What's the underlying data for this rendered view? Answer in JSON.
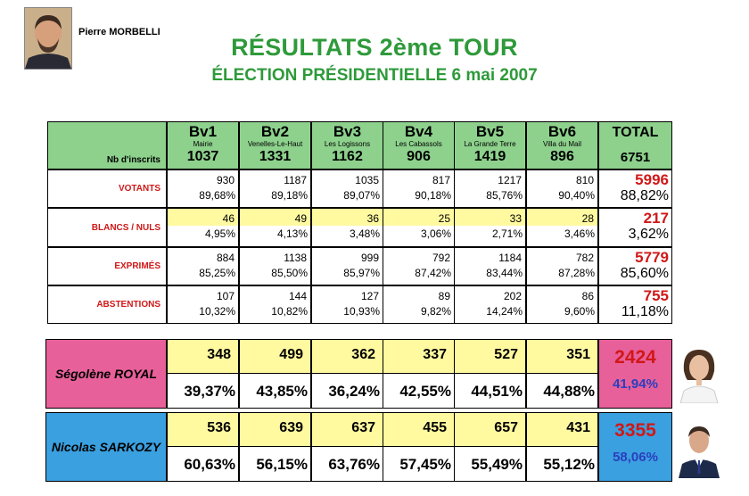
{
  "header": {
    "author": "Pierre MORBELLI",
    "title": "RÉSULTATS 2ème TOUR",
    "subtitle": "ÉLECTION PRÉSIDENTIELLE 6 mai 2007"
  },
  "table": {
    "nb_inscrits_label": "Nb d'inscrits",
    "bureaux": [
      {
        "name": "Bv1",
        "place": "Mairie",
        "inscrits": "1037"
      },
      {
        "name": "Bv2",
        "place": "Venelles-Le-Haut",
        "inscrits": "1331"
      },
      {
        "name": "Bv3",
        "place": "Les Logissons",
        "inscrits": "1162"
      },
      {
        "name": "Bv4",
        "place": "Les Cabassols",
        "inscrits": "906"
      },
      {
        "name": "Bv5",
        "place": "La Grande Terre",
        "inscrits": "1419"
      },
      {
        "name": "Bv6",
        "place": "Villa du Mail",
        "inscrits": "896"
      }
    ],
    "total": {
      "label": "TOTAL",
      "inscrits": "6751"
    },
    "rows": [
      {
        "label": "VOTANTS",
        "values": [
          "930",
          "1187",
          "1035",
          "817",
          "1217",
          "810"
        ],
        "pcts": [
          "89,68%",
          "89,18%",
          "89,07%",
          "90,18%",
          "85,76%",
          "90,40%"
        ],
        "total": "5996",
        "total_pct": "88,82%"
      },
      {
        "label": "BLANCS / NULS",
        "values": [
          "46",
          "49",
          "36",
          "25",
          "33",
          "28"
        ],
        "pcts": [
          "4,95%",
          "4,13%",
          "3,48%",
          "3,06%",
          "2,71%",
          "3,46%"
        ],
        "total": "217",
        "total_pct": "3,62%"
      },
      {
        "label": "EXPRIMÉS",
        "values": [
          "884",
          "1138",
          "999",
          "792",
          "1184",
          "782"
        ],
        "pcts": [
          "85,25%",
          "85,50%",
          "85,97%",
          "87,42%",
          "83,44%",
          "87,28%"
        ],
        "total": "5779",
        "total_pct": "85,60%"
      },
      {
        "label": "ABSTENTIONS",
        "values": [
          "107",
          "144",
          "127",
          "89",
          "202",
          "86"
        ],
        "pcts": [
          "10,32%",
          "10,82%",
          "10,93%",
          "9,82%",
          "14,24%",
          "9,60%"
        ],
        "total": "755",
        "total_pct": "11,18%"
      }
    ]
  },
  "candidates": [
    {
      "name": "Ségolène ROYAL",
      "votes": [
        "348",
        "499",
        "362",
        "337",
        "527",
        "351"
      ],
      "pcts": [
        "39,37%",
        "43,85%",
        "36,24%",
        "42,55%",
        "44,51%",
        "44,88%"
      ],
      "total": "2424",
      "total_pct": "41,94%",
      "color": "#e8609a",
      "total_num_color": "#d01818",
      "total_pct_color": "#2a3fbf"
    },
    {
      "name": "Nicolas SARKOZY",
      "votes": [
        "536",
        "639",
        "637",
        "455",
        "657",
        "431"
      ],
      "pcts": [
        "60,63%",
        "56,15%",
        "63,76%",
        "57,45%",
        "55,49%",
        "55,12%"
      ],
      "total": "3355",
      "total_pct": "58,06%",
      "color": "#3aa0df",
      "total_num_color": "#d01818",
      "total_pct_color": "#2a3fbf"
    }
  ],
  "colors": {
    "title_green": "#2e9a3a",
    "header_green": "#8dd18c",
    "highlight_yellow": "#fff9a0",
    "label_red": "#d01818"
  }
}
